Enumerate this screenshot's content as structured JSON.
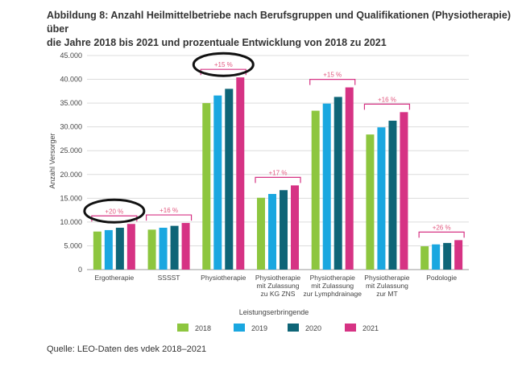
{
  "title_lines": [
    "Abbildung 8: Anzahl Heilmittelbetriebe nach Berufsgruppen und Qualifikationen (Physiotherapie) über",
    "die Jahre 2018 bis 2021 und prozentuale Entwicklung von 2018 zu 2021"
  ],
  "source": "Quelle: LEO-Daten des vdek 2018–2021",
  "colors": {
    "2018": "#8dc63f",
    "2019": "#1aa7e0",
    "2020": "#0e6577",
    "2021": "#d63384",
    "bracket": "#d63384",
    "pct_text": "#e2577f"
  },
  "chart_data": {
    "type": "bar",
    "title": "",
    "xlabel": "Leistungserbringende",
    "ylabel": "Anzahl Versorger",
    "ylim": [
      0,
      45000
    ],
    "yticks": [
      "0",
      "5.000",
      "10.000",
      "15.000",
      "20.000",
      "25.000",
      "30.000",
      "35.000",
      "40.000",
      "45.000"
    ],
    "grid": true,
    "legend_position": "bottom",
    "categories": [
      [
        "Ergotherapie"
      ],
      [
        "SSSST"
      ],
      [
        "Physiotherapie"
      ],
      [
        "Physiotherapie",
        "mit Zulassung",
        "zu KG ZNS"
      ],
      [
        "Physiotherapie",
        "mit Zulassung",
        "zur Lymphdrainage"
      ],
      [
        "Physiotherapie",
        "mit Zulassung",
        "zur MT"
      ],
      [
        "Podologie"
      ]
    ],
    "series": [
      {
        "name": "2018",
        "values": [
          8000,
          8400,
          35000,
          15100,
          33400,
          28400,
          4900
        ]
      },
      {
        "name": "2019",
        "values": [
          8300,
          8800,
          36600,
          15900,
          34900,
          29900,
          5300
        ]
      },
      {
        "name": "2020",
        "values": [
          8800,
          9200,
          38000,
          16700,
          36300,
          31300,
          5600
        ]
      },
      {
        "name": "2021",
        "values": [
          9600,
          9800,
          40400,
          17700,
          38300,
          33100,
          6200
        ]
      }
    ],
    "annotations": [
      "+20 %",
      "+16 %",
      "+15 %",
      "+17 %",
      "+15 %",
      "+16 %",
      "+26 %"
    ],
    "circled": [
      0,
      2
    ]
  }
}
